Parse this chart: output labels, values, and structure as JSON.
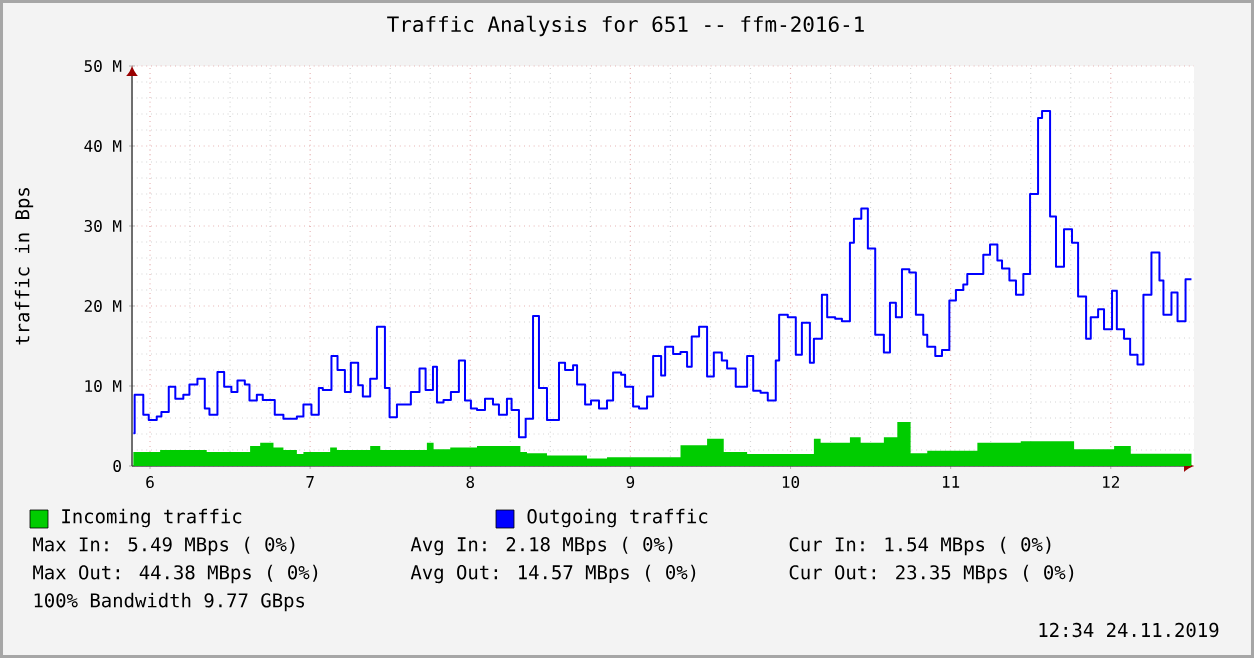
{
  "chart_data": {
    "type": "area",
    "title": "Traffic Analysis for 651 -- ffm-2016-1",
    "ylabel": "traffic in Bps",
    "xlim": [
      5.8875,
      12.52
    ],
    "xticks": [
      6,
      7,
      8,
      9,
      10,
      11,
      12
    ],
    "ylim": [
      0,
      50
    ],
    "yticks": [
      0,
      {
        "value": 10,
        "label": "10 M"
      },
      {
        "value": 20,
        "label": "20 M"
      },
      {
        "value": 30,
        "label": "30 M"
      },
      {
        "value": 40,
        "label": "40 M"
      },
      {
        "value": 50,
        "label": "50 M"
      }
    ],
    "grid": true,
    "legend": "bottom",
    "series": [
      {
        "name": "Incoming traffic",
        "color": "#00cc00",
        "x": [
          5.896,
          6.063,
          6.354,
          6.625,
          6.688,
          6.771,
          6.833,
          6.917,
          6.958,
          7.125,
          7.167,
          7.375,
          7.438,
          7.729,
          7.771,
          7.875,
          8.042,
          8.313,
          8.354,
          8.479,
          8.729,
          8.854,
          9.313,
          9.479,
          9.583,
          9.729,
          10.146,
          10.188,
          10.371,
          10.438,
          10.583,
          10.667,
          10.75,
          10.854,
          11.167,
          11.438,
          11.771,
          12.021,
          12.125,
          12.504
        ],
        "values": [
          1.75,
          2.0,
          1.75,
          2.5,
          2.9,
          2.3,
          2.0,
          1.5,
          1.75,
          2.3,
          2.0,
          2.5,
          2.0,
          2.9,
          2.1,
          2.3,
          2.5,
          1.75,
          1.6,
          1.3,
          0.95,
          1.1,
          2.6,
          3.4,
          1.75,
          1.5,
          3.4,
          2.9,
          3.6,
          2.9,
          3.6,
          5.49,
          1.6,
          1.9,
          2.9,
          3.1,
          2.1,
          2.5,
          1.54,
          1.54
        ]
      },
      {
        "name": "Outgoing traffic",
        "type": "step",
        "color": "#0000ff",
        "x": [
          5.896,
          5.904,
          5.958,
          5.992,
          6.042,
          6.071,
          6.117,
          6.158,
          6.208,
          6.246,
          6.296,
          6.342,
          6.371,
          6.421,
          6.463,
          6.508,
          6.546,
          6.592,
          6.621,
          6.667,
          6.704,
          6.779,
          6.833,
          6.917,
          6.958,
          7.008,
          7.054,
          7.079,
          7.133,
          7.171,
          7.217,
          7.254,
          7.3,
          7.329,
          7.375,
          7.417,
          7.467,
          7.496,
          7.542,
          7.629,
          7.683,
          7.721,
          7.767,
          7.792,
          7.833,
          7.879,
          7.929,
          7.967,
          8.004,
          8.042,
          8.092,
          8.142,
          8.179,
          8.229,
          8.258,
          8.304,
          8.346,
          8.392,
          8.429,
          8.479,
          8.554,
          8.592,
          8.642,
          8.667,
          8.717,
          8.754,
          8.804,
          8.854,
          8.892,
          8.942,
          8.967,
          9.017,
          9.054,
          9.104,
          9.142,
          9.192,
          9.217,
          9.267,
          9.313,
          9.354,
          9.383,
          9.429,
          9.479,
          9.521,
          9.571,
          9.604,
          9.658,
          9.729,
          9.767,
          9.813,
          9.858,
          9.908,
          9.929,
          9.983,
          10.033,
          10.071,
          10.121,
          10.146,
          10.196,
          10.229,
          10.279,
          10.321,
          10.371,
          10.396,
          10.442,
          10.483,
          10.529,
          10.583,
          10.621,
          10.658,
          10.696,
          10.742,
          10.783,
          10.829,
          10.854,
          10.904,
          10.946,
          10.992,
          11.033,
          11.079,
          11.104,
          11.204,
          11.246,
          11.292,
          11.321,
          11.367,
          11.408,
          11.454,
          11.496,
          11.546,
          11.571,
          11.621,
          11.658,
          11.708,
          11.758,
          11.796,
          11.846,
          11.875,
          11.921,
          11.958,
          12.008,
          12.038,
          12.083,
          12.121,
          12.167,
          12.204,
          12.254,
          12.304,
          12.329,
          12.379,
          12.417,
          12.467,
          12.504
        ],
        "values": [
          4.1,
          8.9,
          6.4,
          5.75,
          6.2,
          6.75,
          9.9,
          8.4,
          8.9,
          10.2,
          10.9,
          7.2,
          6.4,
          11.75,
          9.9,
          9.25,
          10.7,
          10.2,
          8.2,
          8.9,
          8.25,
          6.4,
          5.9,
          6.2,
          7.7,
          6.4,
          9.75,
          9.5,
          13.75,
          12,
          9.25,
          12.9,
          10.1,
          8.7,
          10.9,
          17.4,
          9.75,
          6.1,
          7.7,
          9.25,
          12.2,
          9.5,
          12.4,
          7.95,
          8.25,
          9.25,
          13.2,
          8.2,
          7.2,
          7.0,
          8.4,
          7.7,
          6.4,
          8.4,
          7.0,
          3.6,
          5.9,
          18.75,
          9.75,
          5.75,
          12.9,
          12,
          12.6,
          10.2,
          7.7,
          8.2,
          7.2,
          8.2,
          11.7,
          11.4,
          9.9,
          7.45,
          7.2,
          8.7,
          13.75,
          11.3,
          14.9,
          14.0,
          14.25,
          12.4,
          16.2,
          17.4,
          11.2,
          14.2,
          13.2,
          12.2,
          9.9,
          13.75,
          9.4,
          9.15,
          8.2,
          13.2,
          18.9,
          18.6,
          13.9,
          17.9,
          12.9,
          15.9,
          21.4,
          18.6,
          18.4,
          18.1,
          27.9,
          30.9,
          32.2,
          27.2,
          16.4,
          14.2,
          20.4,
          18.6,
          24.6,
          24.2,
          18.9,
          16.4,
          14.9,
          13.75,
          14.5,
          20.7,
          22,
          22.7,
          24,
          26.4,
          27.7,
          25.7,
          24.7,
          23.2,
          21.4,
          24,
          34,
          43.5,
          44.38,
          31.2,
          24.9,
          29.6,
          27.9,
          21.2,
          15.9,
          18.6,
          19.6,
          17.1,
          21.9,
          17.1,
          15.9,
          13.9,
          12.7,
          21.4,
          26.7,
          23.2,
          18.9,
          21.7,
          18.1,
          23.35,
          23.35
        ]
      }
    ],
    "annotations": [
      "Max In: 5.49 MBps ( 0%)",
      "Avg In: 2.18 MBps ( 0%)",
      "Cur In: 1.54 MBps ( 0%)",
      "Max Out: 44.38 MBps ( 0%)",
      "Avg Out: 14.57 MBps ( 0%)",
      "Cur Out: 23.35 MBps ( 0%)",
      "100% Bandwidth 9.77 GBps",
      "12:34 24.11.2019"
    ]
  }
}
